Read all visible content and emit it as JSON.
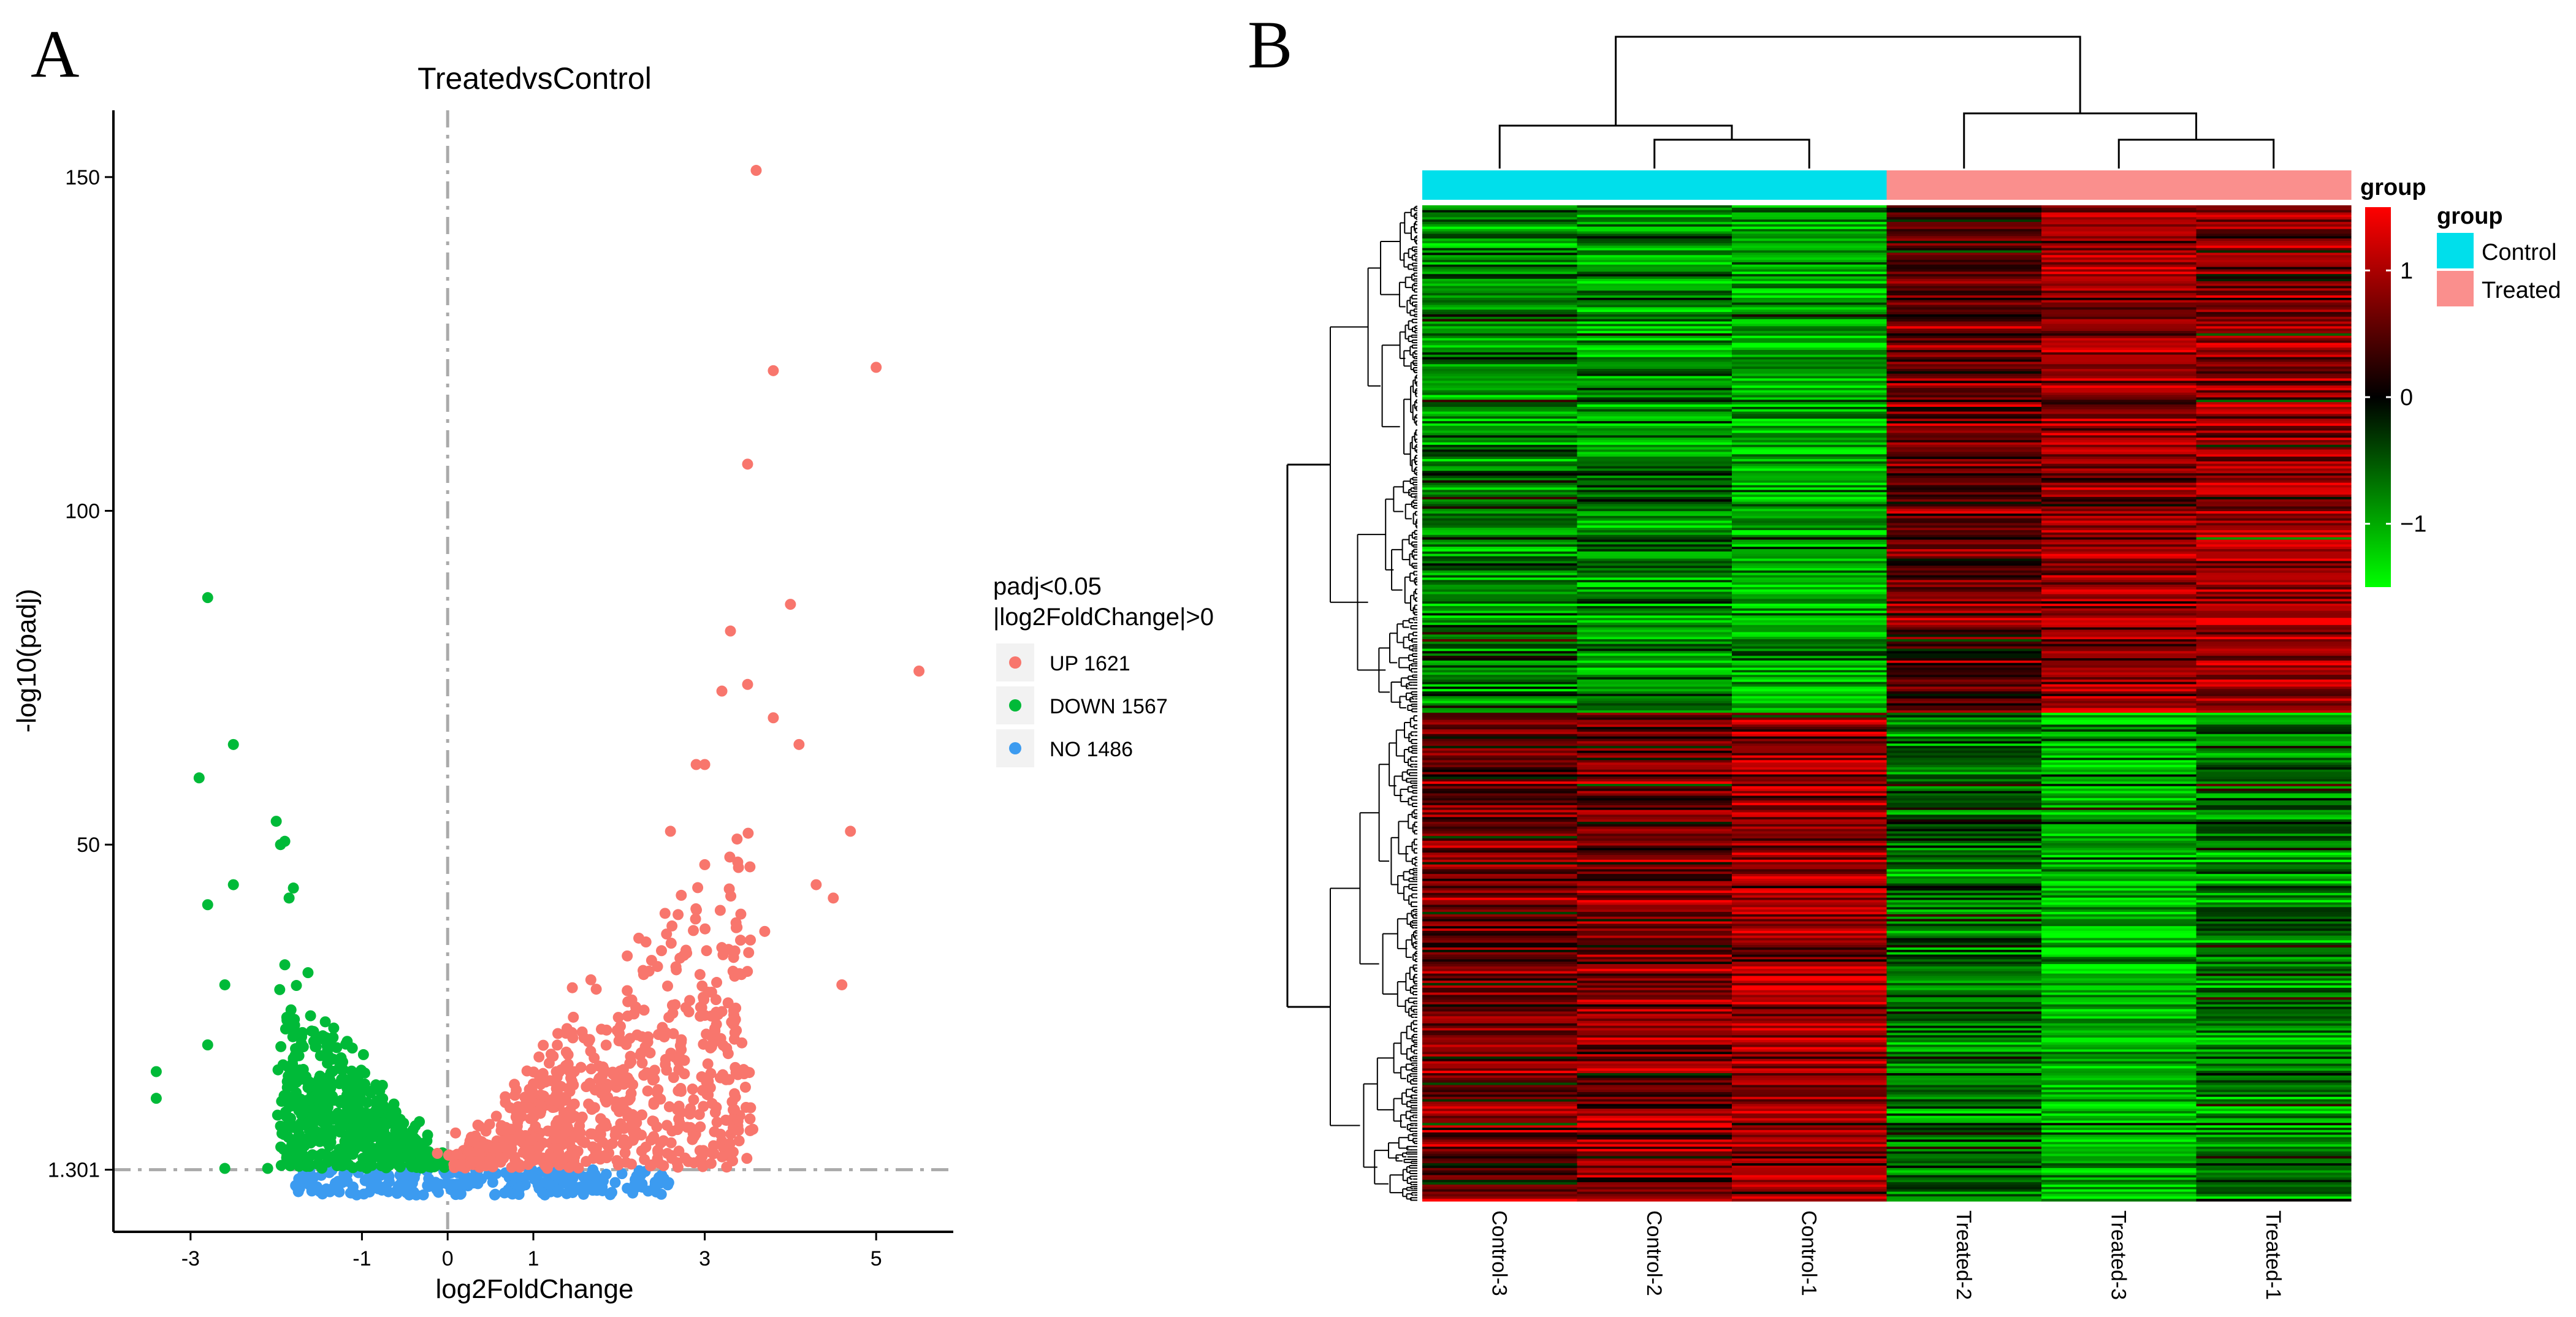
{
  "panels": {
    "a_label": "A",
    "b_label": "B"
  },
  "chart_data": [
    {
      "type": "scatter",
      "title": "TreatedvsControl",
      "xlabel": "log2FoldChange",
      "ylabel": "-log10(padj)",
      "xlim": [
        -3.9,
        5.9
      ],
      "ylim": [
        -8,
        160
      ],
      "x_ticks": [
        -3,
        -1,
        0,
        1,
        3,
        5
      ],
      "x_tick_labels": [
        "-3",
        "-1",
        "0",
        "1",
        "3",
        "5"
      ],
      "y_ticks": [
        1.301,
        50,
        100,
        150
      ],
      "y_tick_labels": [
        "1.301",
        "50",
        "100",
        "150"
      ],
      "threshold_lines": {
        "x": 0,
        "y": 1.301
      },
      "legend": {
        "title_line1": "padj<0.05",
        "title_line2": "|log2FoldChange|>0",
        "entries": [
          {
            "label": "UP 1621",
            "color": "#F8766D"
          },
          {
            "label": "DOWN 1567",
            "color": "#00BA38"
          },
          {
            "label": "NO 1486",
            "color": "#3C9BF0"
          }
        ]
      },
      "series": [
        {
          "name": "UP",
          "color": "#F8766D",
          "highlight_points": [
            [
              3.6,
              151
            ],
            [
              3.8,
              121
            ],
            [
              5.0,
              121.5
            ],
            [
              3.5,
              107
            ],
            [
              4.0,
              86
            ],
            [
              3.3,
              82
            ],
            [
              5.5,
              76
            ],
            [
              3.5,
              74
            ],
            [
              3.2,
              73
            ],
            [
              3.8,
              69
            ],
            [
              4.1,
              65
            ],
            [
              3.0,
              62
            ],
            [
              2.9,
              62
            ],
            [
              4.7,
              52
            ],
            [
              4.3,
              44
            ],
            [
              4.5,
              42
            ],
            [
              4.6,
              29
            ],
            [
              3.0,
              47
            ],
            [
              2.6,
              52
            ],
            [
              3.7,
              37
            ]
          ],
          "cloud": {
            "count": 700,
            "x_range": [
              0.05,
              3.6
            ],
            "y_max_at_edge": 40
          }
        },
        {
          "name": "DOWN",
          "color": "#00BA38",
          "highlight_points": [
            [
              -2.8,
              87
            ],
            [
              -2.5,
              65
            ],
            [
              -2.9,
              60
            ],
            [
              -2.0,
              53.5
            ],
            [
              -1.9,
              50.5
            ],
            [
              -1.95,
              50
            ],
            [
              -2.5,
              44
            ],
            [
              -1.8,
              43.5
            ],
            [
              -1.85,
              42
            ],
            [
              -2.8,
              41
            ],
            [
              -2.6,
              29
            ],
            [
              -1.9,
              32
            ],
            [
              -2.8,
              20
            ],
            [
              -3.4,
              16
            ],
            [
              -3.4,
              12
            ],
            [
              -2.6,
              1.5
            ],
            [
              -2.1,
              1.5
            ]
          ],
          "cloud": {
            "count": 550,
            "x_range": [
              -1.9,
              -0.05
            ],
            "y_max_at_edge": 22
          }
        },
        {
          "name": "NO",
          "color": "#3C9BF0",
          "cloud": {
            "count": 260,
            "x_range": [
              -1.8,
              2.6
            ],
            "y_max_at_edge": 1.3
          }
        }
      ]
    },
    {
      "type": "heatmap",
      "samples": [
        "Control-3",
        "Control-2",
        "Control-1",
        "Treated-2",
        "Treated-3",
        "Treated-1"
      ],
      "groups": [
        "Control",
        "Control",
        "Control",
        "Treated",
        "Treated",
        "Treated"
      ],
      "group_colors": {
        "Control": "#00DFEB",
        "Treated": "#FA8F8D"
      },
      "color_scale": {
        "low": "#00FF00",
        "mid": "#000000",
        "high": "#FF0000",
        "min": -1.5,
        "max": 1.5
      },
      "scale_ticks": [
        1,
        0,
        -1
      ],
      "scale_tick_labels": [
        "1",
        "0",
        "−1"
      ],
      "scale_title": "group",
      "group_legend_title": "group",
      "group_legend_entries": [
        "Control",
        "Treated"
      ],
      "clusters": [
        {
          "name": "up-in-treated",
          "fraction": 0.51,
          "means": [
            -0.7,
            -0.8,
            -1.0,
            0.5,
            0.9,
            0.8
          ]
        },
        {
          "name": "down-in-treated",
          "fraction": 0.49,
          "means": [
            0.6,
            0.7,
            0.9,
            -0.6,
            -1.0,
            -0.7
          ]
        }
      ]
    }
  ]
}
